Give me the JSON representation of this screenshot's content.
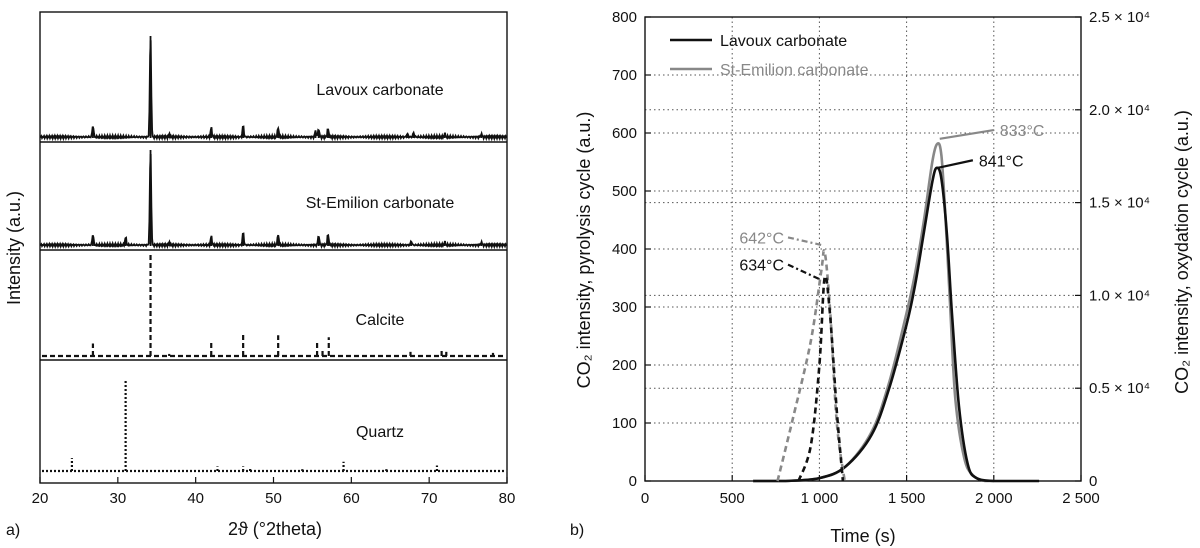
{
  "chart_data": [
    {
      "panel": "a)",
      "type": "line",
      "xlabel": "2ϑ (°2theta)",
      "ylabel": "Intensity (a.u.)",
      "xlim": [
        20,
        80
      ],
      "xticks": [
        20,
        30,
        40,
        50,
        60,
        70,
        80
      ],
      "series": [
        {
          "name": "Lavoux carbonate",
          "style": "solid",
          "baseline": 138,
          "peaks": [
            [
              26.8,
              0.11
            ],
            [
              34.2,
              1.0
            ],
            [
              36.6,
              0.03
            ],
            [
              42.0,
              0.09
            ],
            [
              46.1,
              0.11
            ],
            [
              50.6,
              0.09
            ],
            [
              55.4,
              0.06
            ],
            [
              55.8,
              0.08
            ],
            [
              57.0,
              0.08
            ],
            [
              67.2,
              0.03
            ],
            [
              68.0,
              0.04
            ],
            [
              72.0,
              0.03
            ],
            [
              76.7,
              0.03
            ]
          ]
        },
        {
          "name": "St-Emilion carbonate",
          "style": "solid",
          "baseline": 246,
          "peaks": [
            [
              26.8,
              0.11
            ],
            [
              31.0,
              0.08
            ],
            [
              34.2,
              1.0
            ],
            [
              36.6,
              0.03
            ],
            [
              42.0,
              0.09
            ],
            [
              46.1,
              0.13
            ],
            [
              50.6,
              0.11
            ],
            [
              55.8,
              0.1
            ],
            [
              57.0,
              0.11
            ],
            [
              67.7,
              0.04
            ],
            [
              72.0,
              0.03
            ],
            [
              76.7,
              0.03
            ]
          ]
        },
        {
          "name": "Calcite",
          "style": "dashed",
          "baseline": 356,
          "peaks": [
            [
              26.8,
              0.12
            ],
            [
              34.2,
              1.0
            ],
            [
              36.6,
              0.02
            ],
            [
              42.0,
              0.14
            ],
            [
              46.1,
              0.21
            ],
            [
              50.6,
              0.2
            ],
            [
              55.6,
              0.14
            ],
            [
              56.3,
              0.06
            ],
            [
              57.1,
              0.18
            ],
            [
              67.6,
              0.04
            ],
            [
              71.6,
              0.05
            ],
            [
              72.2,
              0.04
            ],
            [
              78.2,
              0.03
            ]
          ]
        },
        {
          "name": "Quartz",
          "style": "dotted",
          "baseline": 471,
          "peaks": [
            [
              24.1,
              0.14
            ],
            [
              31.0,
              1.0
            ],
            [
              42.8,
              0.05
            ],
            [
              46.1,
              0.05
            ],
            [
              47.0,
              0.03
            ],
            [
              53.7,
              0.02
            ],
            [
              59.0,
              0.1
            ],
            [
              64.5,
              0.02
            ],
            [
              71.0,
              0.06
            ]
          ]
        }
      ]
    },
    {
      "panel": "b)",
      "type": "line",
      "xlabel": "Time (s)",
      "ylabel_left": "CO₂ intensity, pyrolysis cycle (a.u.)",
      "ylabel_right": "CO₂ intensity, oxydation cycle (a.u.)",
      "xlim": [
        0,
        2500
      ],
      "ylim_left": [
        0,
        800
      ],
      "ylim_right": [
        0,
        25000
      ],
      "xticks": [
        "0",
        "500",
        "1 000",
        "1 500",
        "2 000",
        "2 500"
      ],
      "yticks_left": [
        "0",
        "100",
        "200",
        "300",
        "400",
        "500",
        "600",
        "700",
        "800"
      ],
      "yticks_right": [
        "0",
        "0.5 × 10⁴",
        "1.0 × 10⁴",
        "1.5 × 10⁴",
        "2.0 × 10⁴",
        "2.5 × 10⁴"
      ],
      "grid": true,
      "legend": [
        {
          "label": "Lavoux carbonate",
          "color": "#111111"
        },
        {
          "label": "St-Emilion carbonate",
          "color": "#888888"
        }
      ],
      "series": [
        {
          "name": "Lavoux carbonate",
          "cycle": "pyrolysis",
          "color": "#111111",
          "style": "dashed",
          "x": [
            880,
            950,
            1000,
            1030,
            1060,
            1100,
            1135
          ],
          "y": [
            0,
            60,
            200,
            350,
            290,
            120,
            0
          ]
        },
        {
          "name": "St-Emilion carbonate",
          "cycle": "pyrolysis",
          "color": "#888888",
          "style": "dashed",
          "x": [
            760,
            850,
            950,
            1010,
            1030,
            1060,
            1100,
            1145
          ],
          "y": [
            0,
            110,
            240,
            360,
            395,
            300,
            100,
            0
          ]
        },
        {
          "name": "Lavoux carbonate",
          "cycle": "oxydation",
          "color": "#111111",
          "style": "solid",
          "x": [
            620,
            800,
            1000,
            1150,
            1300,
            1400,
            1500,
            1550,
            1600,
            1650,
            1675,
            1700,
            1730,
            1760,
            1800,
            1850,
            1900,
            2000,
            2100,
            2260
          ],
          "y": [
            0,
            0,
            5,
            25,
            80,
            160,
            270,
            340,
            430,
            520,
            540,
            520,
            430,
            290,
            130,
            30,
            5,
            0,
            0,
            0
          ]
        },
        {
          "name": "St-Emilion carbonate",
          "cycle": "oxydation",
          "color": "#888888",
          "style": "solid",
          "x": [
            620,
            800,
            1000,
            1150,
            1300,
            1400,
            1500,
            1550,
            1600,
            1650,
            1680,
            1700,
            1720,
            1750,
            1780,
            1830,
            1880,
            1950,
            2000
          ],
          "y": [
            0,
            0,
            5,
            25,
            85,
            170,
            290,
            360,
            450,
            555,
            582,
            560,
            470,
            300,
            140,
            40,
            10,
            0,
            0
          ]
        }
      ],
      "annotations": [
        {
          "text": "642°C",
          "color": "#888888",
          "line_from": [
            820,
            420
          ],
          "line_to": [
            1010,
            407
          ]
        },
        {
          "text": "634°C",
          "color": "#111111",
          "line_from": [
            820,
            373
          ],
          "line_to": [
            1000,
            348
          ]
        },
        {
          "text": "833°C",
          "color": "#888888",
          "line_from": [
            2000,
            605
          ],
          "line_to": [
            1690,
            590
          ]
        },
        {
          "text": "841°C",
          "color": "#111111",
          "line_from": [
            1880,
            553
          ],
          "line_to": [
            1680,
            540
          ]
        }
      ]
    }
  ]
}
